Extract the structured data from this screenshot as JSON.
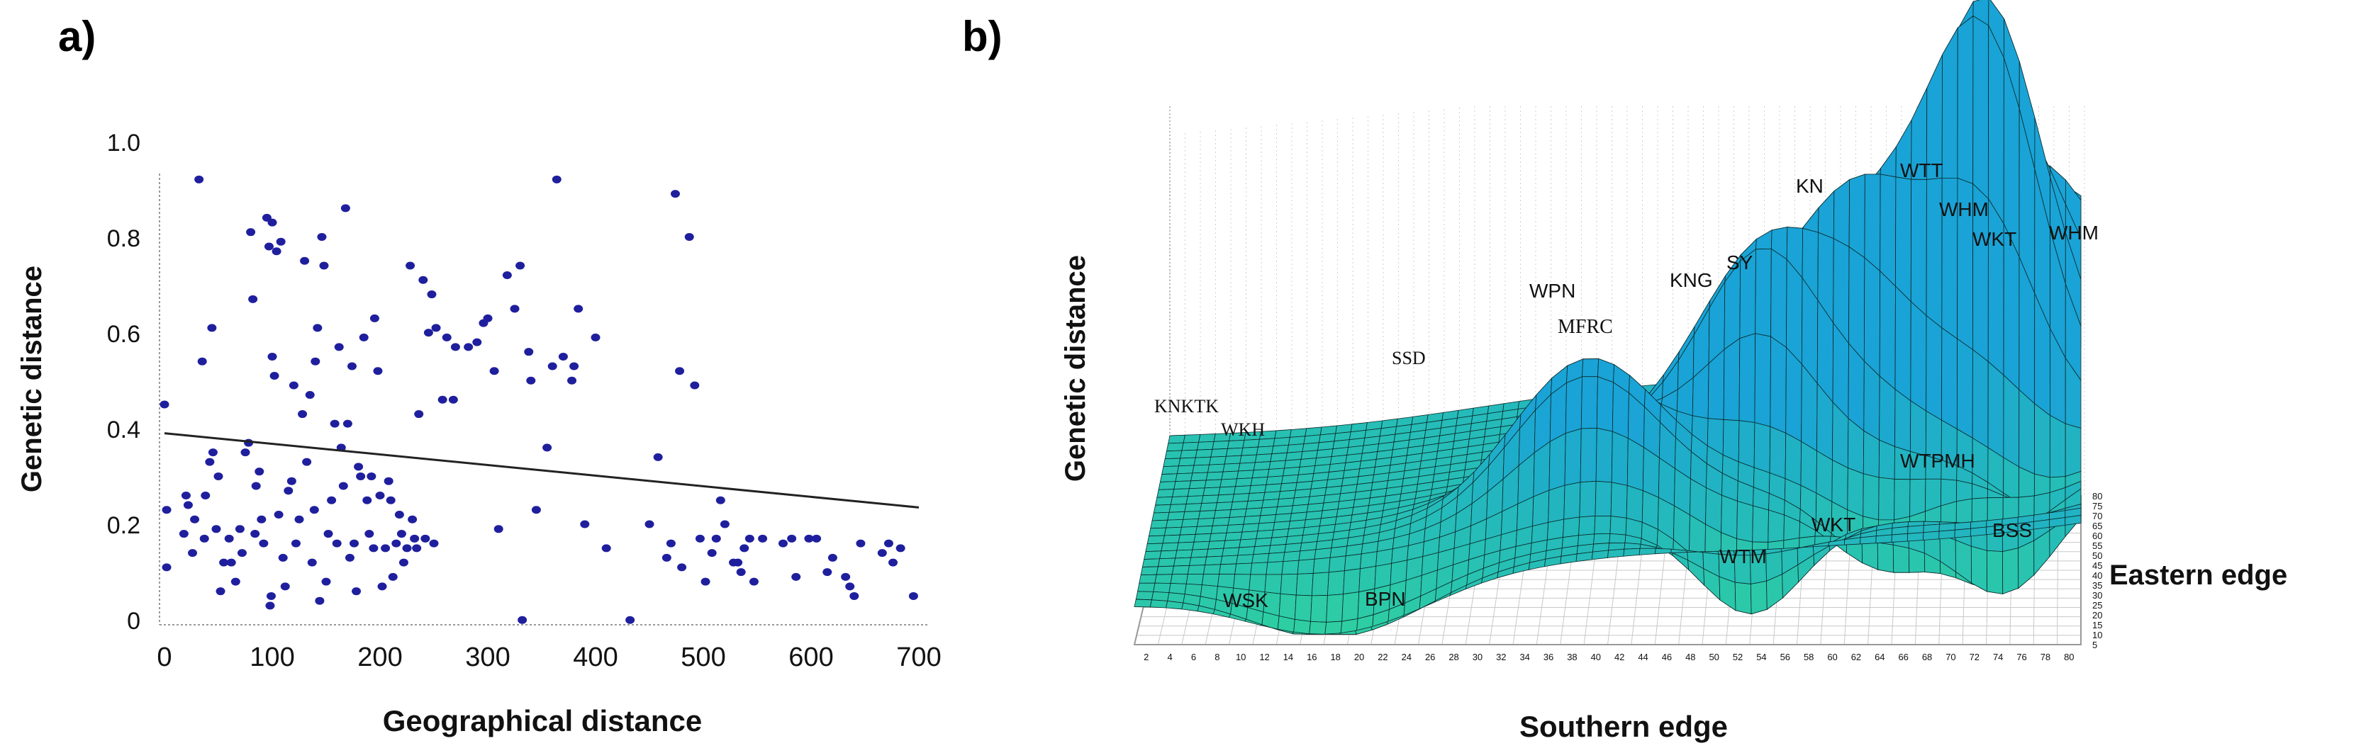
{
  "chart_data": [
    {
      "type": "scatter",
      "panel_label": "a)",
      "xlabel": "Geographical distance",
      "ylabel": "Genetic distance",
      "xlim": [
        0,
        700
      ],
      "ylim": [
        0,
        1.0
      ],
      "x_ticks": [
        "0",
        "100",
        "200",
        "300",
        "400",
        "500",
        "600",
        "700"
      ],
      "y_ticks": [
        "0",
        "0.2",
        "0.4",
        "0.6",
        "0.8",
        "1.0"
      ],
      "point_color": "#1f1f9e",
      "trendline": {
        "x": [
          0,
          700
        ],
        "y": [
          0.4,
          0.245
        ]
      },
      "points": [
        [
          0,
          0.46
        ],
        [
          2,
          0.24
        ],
        [
          2,
          0.12
        ],
        [
          18,
          0.19
        ],
        [
          20,
          0.27
        ],
        [
          22,
          0.25
        ],
        [
          26,
          0.15
        ],
        [
          28,
          0.22
        ],
        [
          32,
          0.93
        ],
        [
          35,
          0.55
        ],
        [
          37,
          0.18
        ],
        [
          38,
          0.27
        ],
        [
          42,
          0.34
        ],
        [
          44,
          0.62
        ],
        [
          45,
          0.36
        ],
        [
          48,
          0.2
        ],
        [
          50,
          0.31
        ],
        [
          52,
          0.07
        ],
        [
          55,
          0.13
        ],
        [
          60,
          0.18
        ],
        [
          62,
          0.13
        ],
        [
          66,
          0.09
        ],
        [
          70,
          0.2
        ],
        [
          72,
          0.15
        ],
        [
          75,
          0.36
        ],
        [
          78,
          0.38
        ],
        [
          80,
          0.82
        ],
        [
          82,
          0.68
        ],
        [
          84,
          0.19
        ],
        [
          85,
          0.29
        ],
        [
          88,
          0.32
        ],
        [
          90,
          0.22
        ],
        [
          92,
          0.17
        ],
        [
          95,
          0.85
        ],
        [
          97,
          0.79
        ],
        [
          98,
          0.04
        ],
        [
          99,
          0.06
        ],
        [
          100,
          0.84
        ],
        [
          100,
          0.56
        ],
        [
          102,
          0.52
        ],
        [
          104,
          0.78
        ],
        [
          106,
          0.23
        ],
        [
          108,
          0.8
        ],
        [
          110,
          0.14
        ],
        [
          112,
          0.08
        ],
        [
          115,
          0.28
        ],
        [
          118,
          0.3
        ],
        [
          120,
          0.5
        ],
        [
          122,
          0.17
        ],
        [
          125,
          0.22
        ],
        [
          128,
          0.44
        ],
        [
          130,
          0.76
        ],
        [
          132,
          0.34
        ],
        [
          135,
          0.48
        ],
        [
          137,
          0.13
        ],
        [
          139,
          0.24
        ],
        [
          140,
          0.55
        ],
        [
          142,
          0.62
        ],
        [
          144,
          0.05
        ],
        [
          146,
          0.81
        ],
        [
          148,
          0.75
        ],
        [
          150,
          0.09
        ],
        [
          152,
          0.19
        ],
        [
          155,
          0.26
        ],
        [
          158,
          0.42
        ],
        [
          160,
          0.17
        ],
        [
          162,
          0.58
        ],
        [
          164,
          0.37
        ],
        [
          166,
          0.29
        ],
        [
          168,
          0.87
        ],
        [
          170,
          0.42
        ],
        [
          172,
          0.14
        ],
        [
          174,
          0.54
        ],
        [
          176,
          0.17
        ],
        [
          178,
          0.07
        ],
        [
          180,
          0.33
        ],
        [
          182,
          0.31
        ],
        [
          185,
          0.6
        ],
        [
          188,
          0.26
        ],
        [
          190,
          0.19
        ],
        [
          192,
          0.31
        ],
        [
          194,
          0.16
        ],
        [
          195,
          0.64
        ],
        [
          198,
          0.53
        ],
        [
          200,
          0.27
        ],
        [
          202,
          0.08
        ],
        [
          205,
          0.16
        ],
        [
          208,
          0.3
        ],
        [
          210,
          0.26
        ],
        [
          212,
          0.1
        ],
        [
          215,
          0.17
        ],
        [
          218,
          0.23
        ],
        [
          220,
          0.19
        ],
        [
          222,
          0.13
        ],
        [
          225,
          0.16
        ],
        [
          228,
          0.75
        ],
        [
          230,
          0.22
        ],
        [
          232,
          0.18
        ],
        [
          234,
          0.16
        ],
        [
          236,
          0.44
        ],
        [
          240,
          0.72
        ],
        [
          242,
          0.18
        ],
        [
          245,
          0.61
        ],
        [
          248,
          0.69
        ],
        [
          250,
          0.17
        ],
        [
          252,
          0.62
        ],
        [
          258,
          0.47
        ],
        [
          262,
          0.6
        ],
        [
          268,
          0.47
        ],
        [
          270,
          0.58
        ],
        [
          282,
          0.58
        ],
        [
          290,
          0.59
        ],
        [
          296,
          0.63
        ],
        [
          300,
          0.64
        ],
        [
          306,
          0.53
        ],
        [
          310,
          0.2
        ],
        [
          318,
          0.73
        ],
        [
          325,
          0.66
        ],
        [
          330,
          0.75
        ],
        [
          332,
          0.01
        ],
        [
          338,
          0.57
        ],
        [
          340,
          0.51
        ],
        [
          345,
          0.24
        ],
        [
          355,
          0.37
        ],
        [
          360,
          0.54
        ],
        [
          364,
          0.93
        ],
        [
          370,
          0.56
        ],
        [
          378,
          0.51
        ],
        [
          380,
          0.54
        ],
        [
          384,
          0.66
        ],
        [
          390,
          0.21
        ],
        [
          400,
          0.6
        ],
        [
          410,
          0.16
        ],
        [
          432,
          0.01
        ],
        [
          450,
          0.21
        ],
        [
          458,
          0.35
        ],
        [
          466,
          0.14
        ],
        [
          470,
          0.17
        ],
        [
          474,
          0.9
        ],
        [
          478,
          0.53
        ],
        [
          480,
          0.12
        ],
        [
          487,
          0.81
        ],
        [
          492,
          0.5
        ],
        [
          497,
          0.18
        ],
        [
          502,
          0.09
        ],
        [
          508,
          0.15
        ],
        [
          512,
          0.18
        ],
        [
          516,
          0.26
        ],
        [
          520,
          0.21
        ],
        [
          528,
          0.13
        ],
        [
          532,
          0.13
        ],
        [
          535,
          0.11
        ],
        [
          538,
          0.16
        ],
        [
          543,
          0.18
        ],
        [
          547,
          0.09
        ],
        [
          555,
          0.18
        ],
        [
          574,
          0.17
        ],
        [
          582,
          0.18
        ],
        [
          586,
          0.1
        ],
        [
          598,
          0.18
        ],
        [
          605,
          0.18
        ],
        [
          615,
          0.11
        ],
        [
          620,
          0.14
        ],
        [
          632,
          0.1
        ],
        [
          636,
          0.08
        ],
        [
          640,
          0.06
        ],
        [
          646,
          0.17
        ],
        [
          666,
          0.15
        ],
        [
          672,
          0.17
        ],
        [
          676,
          0.13
        ],
        [
          683,
          0.16
        ],
        [
          695,
          0.06
        ]
      ]
    },
    {
      "type": "surface",
      "panel_label": "b)",
      "zlabel": "Genetic distance",
      "xlabel": "Southern edge",
      "ylabel": "Eastern edge",
      "x_ticks": [
        "2",
        "4",
        "6",
        "8",
        "10",
        "12",
        "14",
        "16",
        "18",
        "20",
        "22",
        "24",
        "26",
        "28",
        "30",
        "32",
        "34",
        "36",
        "38",
        "40",
        "42",
        "44",
        "46",
        "48",
        "50",
        "52",
        "54",
        "56",
        "58",
        "60",
        "62",
        "64",
        "66",
        "68",
        "70",
        "72",
        "74",
        "76",
        "78",
        "80"
      ],
      "y_ticks": [
        "80",
        "75",
        "70",
        "65",
        "60",
        "55",
        "50",
        "45",
        "40",
        "35",
        "30",
        "25",
        "20",
        "15",
        "10",
        "5"
      ],
      "colors": {
        "surface_top": "#1aa3d6",
        "surface_low": "#2fd0a0",
        "mesh": "#0b2a2a"
      },
      "labels": {
        "top_peaks": [
          "KNKTK",
          "WKH",
          "SSD",
          "WPN",
          "MFRC",
          "KNG",
          "SY",
          "KN",
          "WTT",
          "WHM",
          "WKT",
          "WHM"
        ],
        "low_valleys": [
          "WSK",
          "BPN",
          "WTM",
          "WKT",
          "WTPMH",
          "BSS"
        ]
      }
    }
  ]
}
